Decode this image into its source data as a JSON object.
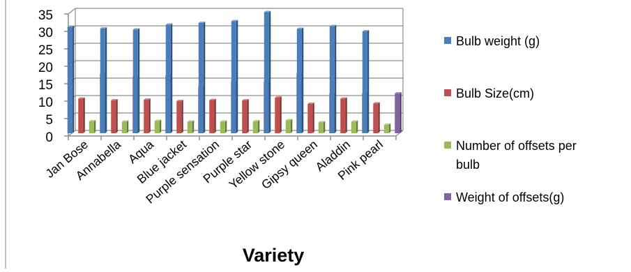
{
  "chart_data": {
    "type": "bar",
    "style": "3d-clustered-column",
    "title": "",
    "xlabel": "Variety",
    "ylabel": "",
    "ylim": [
      0,
      35
    ],
    "yticks": [
      "0",
      "5",
      "10",
      "15",
      "20",
      "25",
      "30",
      "35"
    ],
    "grid": true,
    "legend_position": "right",
    "categories": [
      "Jan Bose",
      "Annabella",
      "Aqua",
      "Blue jacket",
      "Purple sensation",
      "Purple star",
      "Yellow stone",
      "Gipsy queen",
      "Aladdin",
      "Pink pearl"
    ],
    "series": [
      {
        "name": "Bulb weight (g)",
        "legend_lines": [
          "Bulb weight (g)"
        ],
        "color": "#4a7ebb",
        "values": [
          30.5,
          30.0,
          29.7,
          31.1,
          31.6,
          32.1,
          34.7,
          29.9,
          30.7,
          29.2
        ]
      },
      {
        "name": "Bulb Size(cm)",
        "legend_lines": [
          "Bulb Size(cm)"
        ],
        "color": "#c0504d",
        "values": [
          9.9,
          9.4,
          9.6,
          9.2,
          9.5,
          9.4,
          10.2,
          8.4,
          9.9,
          8.5
        ]
      },
      {
        "name": "Number of offsets per bulb",
        "legend_lines": [
          "Number of offsets per",
          "bulb"
        ],
        "color": "#9bbb59",
        "values": [
          3.4,
          3.3,
          3.5,
          3.3,
          3.3,
          3.4,
          3.7,
          3.1,
          3.3,
          2.4
        ]
      },
      {
        "name": "Weight of offsets(g)",
        "legend_lines": [
          "Weight of offsets(g)"
        ],
        "color": "#8064a2",
        "values": [
          17.0,
          16.3,
          16.6,
          13.3,
          14.8,
          14.7,
          17.2,
          11.4,
          11.4,
          11.4
        ]
      }
    ]
  }
}
